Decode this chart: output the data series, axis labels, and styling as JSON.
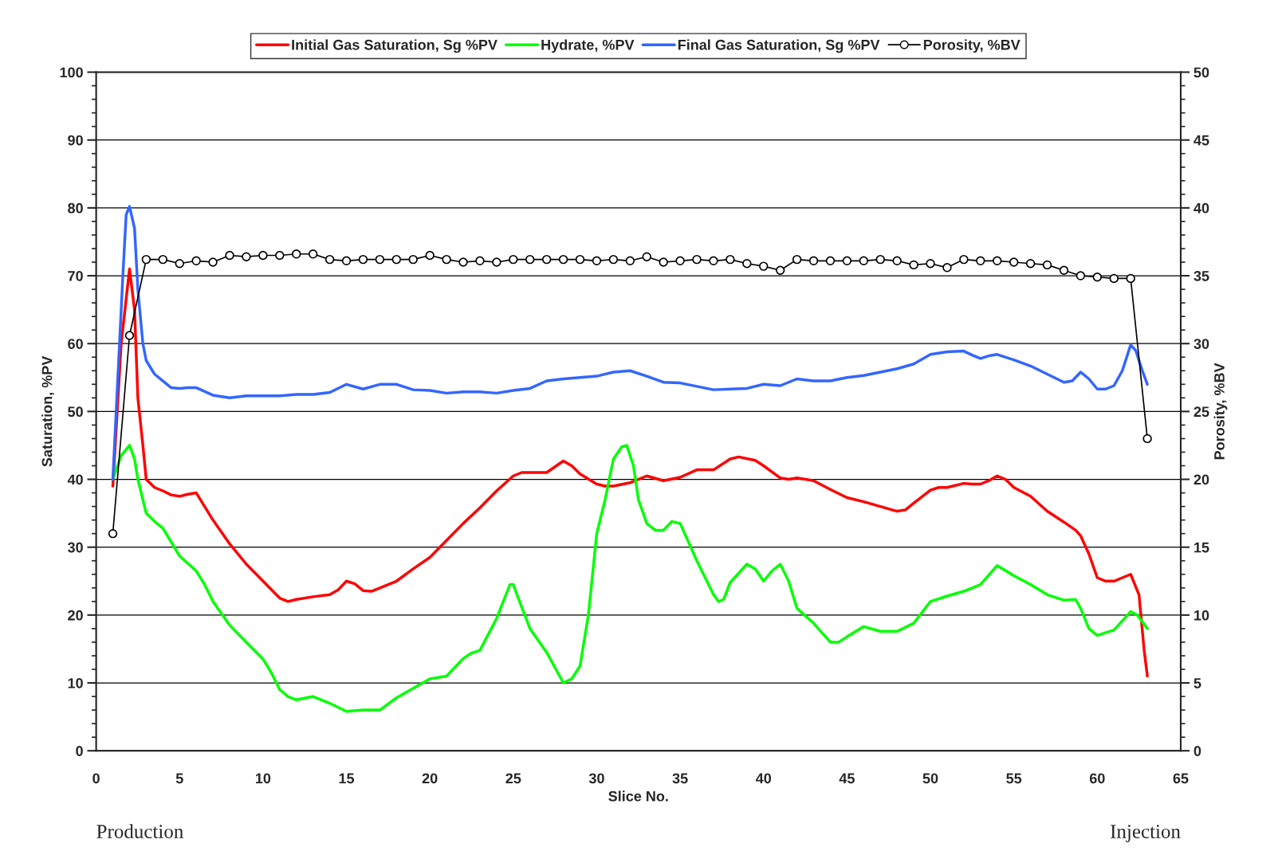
{
  "chart_data": {
    "type": "line",
    "xlabel": "Slice No.",
    "ylabel": "Saturation, %PV",
    "y2label": "Porosity, %BV",
    "xlim": [
      0,
      65
    ],
    "xticks": [
      0,
      5,
      10,
      15,
      20,
      25,
      30,
      35,
      40,
      45,
      50,
      55,
      60,
      65
    ],
    "ylim": [
      0,
      100
    ],
    "yticks": [
      0,
      10,
      20,
      30,
      40,
      50,
      60,
      70,
      80,
      90,
      100
    ],
    "y2lim": [
      0,
      50
    ],
    "y2ticks": [
      0,
      5,
      10,
      15,
      20,
      25,
      30,
      35,
      40,
      45,
      50
    ],
    "grid": "y",
    "legend": "top",
    "marker": "none",
    "line_style": "solid",
    "annotations": [
      "Production",
      "Injection"
    ],
    "series": [
      {
        "name": "Initial Gas Saturation, Sg %PV",
        "color": "#ff0000",
        "x": [
          1,
          1.5,
          2,
          2.3,
          2.5,
          2.8,
          3,
          3.5,
          4,
          4.5,
          5,
          5.5,
          6,
          6.5,
          7,
          8,
          9,
          10,
          11,
          11.5,
          12,
          13,
          14,
          14.5,
          15,
          15.5,
          16,
          16.5,
          17,
          18,
          19,
          20,
          21,
          22,
          23,
          24,
          25,
          25.5,
          27,
          28,
          28.5,
          29,
          30,
          30.5,
          31,
          32,
          33,
          34,
          35,
          36,
          37,
          38,
          38.5,
          39.5,
          40,
          41,
          41.5,
          42,
          43,
          44,
          45,
          46,
          47,
          48,
          48.5,
          49,
          50,
          50.5,
          51,
          52,
          52.5,
          53,
          53.5,
          54,
          54.5,
          55,
          56,
          57,
          58,
          58.7,
          59,
          59.5,
          60,
          60.5,
          61,
          61.5,
          62,
          62.5,
          62.8,
          63
        ],
        "values": [
          39,
          60,
          71,
          65,
          52,
          45,
          40,
          38.8,
          38.3,
          37.7,
          37.5,
          37.8,
          38,
          36,
          34,
          30.5,
          27.5,
          25,
          22.5,
          22,
          22.3,
          22.7,
          23,
          23.7,
          25,
          24.6,
          23.6,
          23.5,
          24,
          25,
          26.8,
          28.5,
          31,
          33.5,
          35.8,
          38.3,
          40.5,
          41,
          41,
          42.7,
          42,
          40.8,
          39.3,
          39,
          39,
          39.5,
          40.5,
          39.8,
          40.3,
          41.4,
          41.4,
          43,
          43.3,
          42.8,
          42,
          40.2,
          40,
          40.2,
          39.8,
          38.5,
          37.3,
          36.7,
          36,
          35.3,
          35.5,
          36.5,
          38.4,
          38.8,
          38.8,
          39.4,
          39.3,
          39.3,
          39.8,
          40.5,
          40,
          38.8,
          37.5,
          35.3,
          33.7,
          32.5,
          31.7,
          29,
          25.5,
          25,
          25,
          25.5,
          26,
          23,
          15,
          11
        ]
      },
      {
        "name": "Hydrate, %PV",
        "color": "#00ff00",
        "x": [
          1,
          1.5,
          2,
          2.3,
          2.5,
          3,
          3.5,
          4,
          5,
          6,
          6.5,
          7,
          8,
          9,
          10,
          10.5,
          11,
          11.5,
          12,
          13,
          14,
          15,
          16,
          17,
          18,
          19,
          20,
          21,
          22,
          22.5,
          23,
          24,
          24.8,
          25,
          25.3,
          26,
          27,
          28,
          28.5,
          29,
          29.5,
          30,
          30.5,
          31,
          31.5,
          31.8,
          32.2,
          32.5,
          33,
          33.5,
          34,
          34.5,
          35,
          36,
          37,
          37.3,
          37.6,
          38,
          39,
          39.5,
          40,
          40.5,
          41,
          41.5,
          42,
          43,
          44,
          44.5,
          45,
          46,
          47,
          48,
          49,
          50,
          51,
          52,
          53,
          54,
          55,
          56,
          57,
          58,
          58.7,
          59,
          59.5,
          60,
          61,
          62,
          62.4,
          63
        ],
        "values": [
          40,
          43.5,
          45,
          43,
          40,
          35,
          33.8,
          32.8,
          28.7,
          26.5,
          24.5,
          22,
          18.5,
          16,
          13.5,
          11.5,
          9,
          8,
          7.5,
          8,
          7,
          5.8,
          6,
          6,
          7.8,
          9.2,
          10.6,
          11,
          13.6,
          14.4,
          14.8,
          19.5,
          24.5,
          24.5,
          22.5,
          18,
          14.5,
          10,
          10.6,
          12.5,
          20,
          32,
          37,
          43,
          44.8,
          45,
          42,
          37,
          33.5,
          32.5,
          32.5,
          33.8,
          33.5,
          28,
          23,
          22,
          22.3,
          24.8,
          27.5,
          26.8,
          25,
          26.5,
          27.5,
          25,
          21,
          18.8,
          16,
          16,
          16.8,
          18.3,
          17.6,
          17.6,
          18.8,
          22,
          22.8,
          23.5,
          24.5,
          27.3,
          25.8,
          24.5,
          23,
          22.2,
          22.3,
          21,
          18,
          17,
          17.8,
          20.5,
          20,
          18
        ]
      },
      {
        "name": "Final Gas Saturation, Sg %PV",
        "color": "#3366ff",
        "x": [
          1,
          1.3,
          1.6,
          1.8,
          2,
          2.3,
          2.5,
          2.8,
          3,
          3.5,
          4,
          4.5,
          5,
          5.5,
          6,
          7,
          8,
          9,
          10,
          11,
          12,
          13,
          14,
          15,
          16,
          17,
          18,
          19,
          20,
          21,
          22,
          23,
          24,
          25,
          26,
          27,
          28,
          29,
          30,
          31,
          32,
          33,
          34,
          35,
          36,
          37,
          38,
          39,
          40,
          41,
          42,
          43,
          44,
          45,
          46,
          47,
          48,
          49,
          50,
          51,
          52,
          52.5,
          53,
          53.5,
          54,
          55,
          56,
          57,
          58,
          58.5,
          59,
          59.5,
          60,
          60.5,
          61,
          61.5,
          62,
          62.3,
          62.7,
          63
        ],
        "values": [
          40,
          55,
          70,
          79,
          80.2,
          77,
          68,
          60,
          57.5,
          55.5,
          54.5,
          53.5,
          53.4,
          53.5,
          53.5,
          52.4,
          52,
          52.3,
          52.3,
          52.3,
          52.5,
          52.5,
          52.8,
          54,
          53.3,
          54,
          54,
          53.2,
          53.1,
          52.7,
          52.9,
          52.9,
          52.7,
          53.1,
          53.4,
          54.5,
          54.8,
          55,
          55.2,
          55.8,
          56,
          55.2,
          54.3,
          54.2,
          53.7,
          53.2,
          53.3,
          53.4,
          54,
          53.8,
          54.8,
          54.5,
          54.5,
          55,
          55.3,
          55.8,
          56.3,
          57,
          58.4,
          58.8,
          58.9,
          58.3,
          57.8,
          58.2,
          58.4,
          57.6,
          56.7,
          55.5,
          54.3,
          54.5,
          55.8,
          54.8,
          53.3,
          53.3,
          53.8,
          56,
          59.8,
          59,
          56,
          54
        ]
      },
      {
        "name": "Porosity, %BV",
        "color": "#000000",
        "axis": "y2",
        "marker": "circle",
        "x": [
          1,
          2,
          3,
          4,
          5,
          6,
          7,
          8,
          9,
          10,
          11,
          12,
          13,
          14,
          15,
          16,
          17,
          18,
          19,
          20,
          21,
          22,
          23,
          24,
          25,
          26,
          27,
          28,
          29,
          30,
          31,
          32,
          33,
          34,
          35,
          36,
          37,
          38,
          39,
          40,
          41,
          42,
          43,
          44,
          45,
          46,
          47,
          48,
          49,
          50,
          51,
          52,
          53,
          54,
          55,
          56,
          57,
          58,
          59,
          60,
          61,
          62,
          63
        ],
        "values": [
          16,
          30.6,
          36.2,
          36.2,
          35.9,
          36.1,
          36,
          36.5,
          36.4,
          36.5,
          36.5,
          36.6,
          36.6,
          36.2,
          36.1,
          36.2,
          36.2,
          36.2,
          36.2,
          36.5,
          36.2,
          36,
          36.1,
          36,
          36.2,
          36.2,
          36.2,
          36.2,
          36.2,
          36.1,
          36.2,
          36.1,
          36.4,
          36,
          36.1,
          36.2,
          36.1,
          36.2,
          35.9,
          35.7,
          35.4,
          36.2,
          36.1,
          36.1,
          36.1,
          36.1,
          36.2,
          36.1,
          35.8,
          35.9,
          35.6,
          36.2,
          36.1,
          36.1,
          36,
          35.9,
          35.8,
          35.4,
          35,
          34.9,
          34.8,
          34.8,
          23
        ]
      }
    ]
  }
}
